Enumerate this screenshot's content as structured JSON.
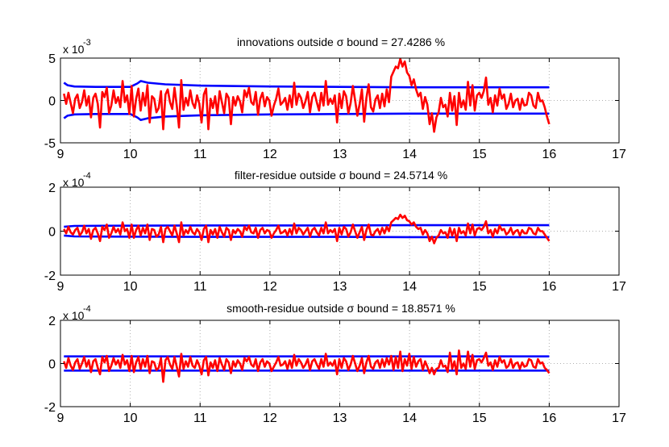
{
  "chart_data": [
    {
      "type": "line",
      "title": "innovations outside σ bound = 27.4286 %",
      "xlabel": "",
      "ylabel": "",
      "exponent_base": "x 10",
      "exponent_power": "-3",
      "xlim": [
        9,
        17
      ],
      "ylim": [
        -5,
        5
      ],
      "xticks": [
        9,
        10,
        11,
        12,
        13,
        14,
        15,
        16,
        17
      ],
      "yticks": [
        -5,
        0,
        5
      ],
      "grid": "dotted",
      "upper_bound": {
        "x": [
          9.05,
          9.1,
          9.2,
          9.5,
          10,
          10.05,
          10.1,
          10.15,
          10.25,
          10.5,
          11,
          12,
          13,
          14,
          15,
          16
        ],
        "y": [
          2.1,
          1.8,
          1.65,
          1.6,
          1.6,
          1.8,
          2.0,
          2.3,
          2.1,
          1.9,
          1.75,
          1.65,
          1.6,
          1.55,
          1.55,
          1.55
        ]
      },
      "lower_bound": {
        "x": [
          9.05,
          9.1,
          9.2,
          9.5,
          10,
          10.05,
          10.1,
          10.15,
          10.25,
          10.5,
          11,
          12,
          13,
          14,
          15,
          16
        ],
        "y": [
          -2.1,
          -1.8,
          -1.65,
          -1.6,
          -1.6,
          -1.8,
          -2.0,
          -2.3,
          -2.1,
          -1.9,
          -1.75,
          -1.65,
          -1.6,
          -1.55,
          -1.55,
          -1.55
        ]
      },
      "series_y": [
        0.8,
        -0.4,
        0.9,
        -0.3,
        -1.5,
        0.2,
        0.7,
        -0.9,
        -0.2,
        1.2,
        -0.6,
        0.5,
        -2.0,
        0.3,
        0.8,
        -0.4,
        -3.2,
        1.0,
        0.4,
        1.5,
        -1.5,
        -0.6,
        1.2,
        -0.3,
        0.4,
        -0.8,
        2.3,
        -0.2,
        0.6,
        -1.6,
        1.7,
        -1.9,
        0.2,
        1.4,
        -1.2,
        0.9,
        -0.6,
        1.8,
        -2.6,
        0.5,
        0.2,
        -1.4,
        -0.9,
        1.1,
        -3.4,
        0.7,
        1.3,
        -0.2,
        -1.0,
        1.5,
        -0.6,
        -3.2,
        2.4,
        -1.1,
        0.3,
        -0.6,
        1.2,
        -0.3,
        -0.9,
        0.6,
        -0.4,
        -2.6,
        0.7,
        1.4,
        -3.4,
        0.2,
        -0.9,
        0.5,
        -1.6,
        1.1,
        -0.2,
        -1.5,
        0.8,
        0.3,
        -2.8,
        0.4,
        -0.6,
        0.5,
        -0.1,
        -1.4,
        1.2,
        0.4,
        1.5,
        -0.2,
        -0.5,
        1.0,
        -1.7,
        0.2,
        0.9,
        -0.7,
        0.4,
        0.0,
        -1.8,
        -0.6,
        0.2,
        1.4,
        -0.5,
        -0.2,
        0.3,
        -1.1,
        0.6,
        -0.8,
        2.1,
        -0.5,
        0.8,
        0.3,
        -0.9,
        -0.1,
        1.0,
        -1.4,
        0.4,
        0.9,
        -0.2,
        -1.2,
        0.9,
        -0.6,
        2.3,
        -0.5,
        0.2,
        -0.4,
        0.6,
        -2.6,
        0.8,
        -0.9,
        1.1,
        0.5,
        -1.5,
        -0.3,
        1.7,
        0.0,
        -1.8,
        -0.4,
        1.3,
        -2.5,
        0.3,
        1.9,
        -0.8,
        -1.3,
        0.1,
        0.6,
        -0.9,
        0.8,
        -0.7,
        1.3,
        -0.2,
        2.8,
        3.4,
        4.0,
        3.8,
        4.9,
        4.0,
        4.6,
        3.3,
        2.9,
        1.8,
        2.5,
        1.3,
        0.5,
        0.9,
        -1.0,
        0.4,
        -0.5,
        -2.8,
        -1.5,
        -3.7,
        -2.0,
        -1.4,
        0.3,
        -0.8,
        -0.5,
        -1.9,
        0.9,
        -1.2,
        0.5,
        -2.9,
        0.9,
        -0.8,
        0.0,
        -1.1,
        2.2,
        -0.6,
        1.8,
        -1.2,
        0.6,
        0.9,
        0.3,
        1.1,
        2.7,
        -0.5,
        0.3,
        -1.4,
        0.6,
        -0.6,
        1.4,
        0.2,
        0.7,
        -1.0,
        -0.4,
        0.8,
        -0.8,
        0.0,
        0.2,
        -1.1,
        0.2,
        -0.6,
        -0.5,
        0.9,
        0.6,
        -0.6,
        -0.9,
        0.9,
        -0.1,
        0.0,
        -0.8,
        -1.9,
        -2.8
      ]
    },
    {
      "type": "line",
      "title": "filter-residue outside σ bound = 24.5714 %",
      "xlabel": "",
      "ylabel": "",
      "exponent_base": "x 10",
      "exponent_power": "-4",
      "xlim": [
        9,
        17
      ],
      "ylim": [
        -2,
        2
      ],
      "xticks": [
        9,
        10,
        11,
        12,
        13,
        14,
        15,
        16,
        17
      ],
      "yticks": [
        -2,
        0,
        2
      ],
      "grid": "dotted",
      "upper_bound": {
        "x": [
          9.05,
          9.2,
          10,
          11,
          12,
          13,
          14,
          15,
          16
        ],
        "y": [
          0.2,
          0.24,
          0.25,
          0.26,
          0.26,
          0.26,
          0.27,
          0.27,
          0.27
        ]
      },
      "lower_bound": {
        "x": [
          9.05,
          9.2,
          10,
          11,
          12,
          13,
          14,
          15,
          16
        ],
        "y": [
          -0.2,
          -0.24,
          -0.25,
          -0.26,
          -0.26,
          -0.26,
          -0.27,
          -0.27,
          -0.27
        ]
      },
      "series_y": [
        0.1,
        -0.1,
        0.2,
        -0.05,
        -0.15,
        0.05,
        0.15,
        -0.2,
        -0.05,
        0.25,
        -0.1,
        0.1,
        -0.35,
        0.05,
        0.15,
        -0.1,
        -0.45,
        0.2,
        0.05,
        0.3,
        -0.3,
        -0.1,
        0.2,
        -0.05,
        0.1,
        -0.15,
        0.4,
        0.0,
        0.1,
        -0.3,
        0.3,
        -0.3,
        0.05,
        0.25,
        -0.2,
        0.15,
        -0.1,
        0.3,
        -0.4,
        0.1,
        0.05,
        -0.25,
        -0.15,
        0.2,
        -0.5,
        0.1,
        0.2,
        0.0,
        -0.2,
        0.25,
        -0.1,
        -0.5,
        0.4,
        -0.2,
        0.05,
        -0.1,
        0.2,
        -0.05,
        -0.15,
        0.1,
        -0.05,
        -0.4,
        0.1,
        0.25,
        -0.5,
        0.05,
        -0.15,
        0.1,
        -0.3,
        0.2,
        -0.05,
        -0.25,
        0.15,
        0.05,
        -0.4,
        0.05,
        -0.1,
        0.1,
        0.0,
        -0.25,
        0.2,
        0.05,
        0.25,
        -0.05,
        -0.1,
        0.15,
        -0.3,
        0.05,
        0.15,
        -0.1,
        0.05,
        0.0,
        -0.3,
        -0.1,
        0.05,
        0.25,
        -0.1,
        -0.05,
        0.05,
        -0.2,
        0.1,
        -0.15,
        0.35,
        -0.1,
        0.15,
        0.05,
        -0.15,
        0.0,
        0.15,
        -0.25,
        0.05,
        0.15,
        -0.05,
        -0.2,
        0.15,
        -0.1,
        0.4,
        -0.1,
        0.05,
        -0.05,
        0.1,
        -0.45,
        0.15,
        -0.15,
        0.2,
        0.1,
        -0.25,
        -0.05,
        0.3,
        0.0,
        -0.3,
        -0.05,
        0.2,
        -0.4,
        0.05,
        0.3,
        -0.15,
        -0.2,
        0.0,
        0.1,
        -0.15,
        0.15,
        -0.1,
        0.2,
        0.0,
        0.4,
        0.5,
        0.6,
        0.55,
        0.75,
        0.6,
        0.7,
        0.5,
        0.45,
        0.3,
        0.4,
        0.2,
        0.1,
        0.15,
        -0.15,
        0.05,
        -0.1,
        -0.45,
        -0.25,
        -0.55,
        -0.3,
        -0.2,
        0.05,
        -0.1,
        -0.05,
        -0.3,
        0.15,
        -0.2,
        0.1,
        -0.45,
        0.15,
        -0.1,
        0.0,
        -0.2,
        0.35,
        -0.1,
        0.3,
        -0.2,
        0.1,
        0.15,
        0.05,
        0.2,
        0.45,
        -0.1,
        0.05,
        -0.25,
        0.1,
        -0.1,
        0.25,
        0.05,
        0.1,
        -0.15,
        -0.05,
        0.15,
        -0.15,
        0.0,
        0.05,
        -0.2,
        0.05,
        -0.1,
        -0.1,
        0.15,
        0.1,
        -0.1,
        -0.15,
        0.15,
        0.0,
        0.0,
        -0.15,
        -0.3,
        -0.45
      ]
    },
    {
      "type": "line",
      "title": "smooth-residue outside σ bound = 18.8571 %",
      "xlabel": "",
      "ylabel": "",
      "exponent_base": "x 10",
      "exponent_power": "-4",
      "xlim": [
        9,
        17
      ],
      "ylim": [
        -2,
        2
      ],
      "xticks": [
        9,
        10,
        11,
        12,
        13,
        14,
        15,
        16,
        17
      ],
      "yticks": [
        -2,
        0,
        2
      ],
      "grid": "dotted",
      "upper_bound": {
        "x": [
          9.05,
          10,
          11,
          12,
          13,
          14,
          15,
          16
        ],
        "y": [
          0.33,
          0.33,
          0.33,
          0.33,
          0.33,
          0.33,
          0.33,
          0.33
        ]
      },
      "lower_bound": {
        "x": [
          9.05,
          10,
          11,
          12,
          13,
          14,
          15,
          16
        ],
        "y": [
          -0.33,
          -0.33,
          -0.33,
          -0.33,
          -0.33,
          -0.33,
          -0.33,
          -0.33
        ]
      },
      "series_y": [
        0.1,
        -0.2,
        0.25,
        -0.1,
        -0.3,
        0.05,
        0.2,
        -0.25,
        0.0,
        0.3,
        -0.15,
        0.15,
        -0.4,
        0.1,
        0.2,
        -0.2,
        -0.5,
        0.3,
        0.05,
        0.35,
        -0.35,
        -0.1,
        0.25,
        -0.05,
        0.15,
        -0.2,
        0.4,
        -0.05,
        0.15,
        -0.35,
        0.35,
        -0.4,
        0.05,
        0.3,
        -0.25,
        0.2,
        -0.15,
        0.35,
        -0.45,
        0.1,
        0.05,
        -0.3,
        -0.2,
        0.25,
        -0.85,
        0.15,
        0.3,
        -0.05,
        -0.25,
        0.3,
        -0.15,
        -0.6,
        0.45,
        -0.25,
        0.1,
        -0.15,
        0.3,
        -0.1,
        -0.2,
        0.15,
        -0.1,
        -0.5,
        0.15,
        0.3,
        -0.55,
        0.05,
        -0.2,
        0.15,
        -0.35,
        0.25,
        -0.05,
        -0.3,
        0.2,
        0.05,
        -0.45,
        0.1,
        -0.15,
        0.15,
        0.0,
        -0.3,
        0.25,
        0.1,
        0.3,
        -0.05,
        -0.15,
        0.2,
        -0.35,
        0.05,
        0.2,
        -0.15,
        0.1,
        0.0,
        -0.35,
        -0.15,
        0.05,
        0.3,
        -0.1,
        -0.05,
        0.1,
        -0.25,
        0.15,
        -0.2,
        0.4,
        -0.1,
        0.2,
        0.05,
        -0.2,
        -0.05,
        0.2,
        -0.3,
        0.1,
        0.2,
        -0.05,
        -0.25,
        0.2,
        -0.15,
        0.45,
        -0.1,
        0.05,
        -0.1,
        0.15,
        -0.5,
        0.2,
        -0.2,
        0.25,
        0.1,
        -0.3,
        -0.05,
        0.35,
        0.0,
        -0.35,
        -0.1,
        0.25,
        -0.45,
        0.05,
        0.35,
        -0.15,
        -0.25,
        0.05,
        0.15,
        -0.2,
        0.2,
        -0.15,
        0.25,
        -0.05,
        0.35,
        -0.3,
        0.3,
        -0.2,
        0.55,
        -0.35,
        0.2,
        -0.1,
        0.45,
        -0.25,
        0.3,
        -0.15,
        0.1,
        0.2,
        -0.3,
        0.1,
        -0.15,
        -0.45,
        -0.2,
        -0.5,
        -0.25,
        -0.2,
        0.15,
        -0.15,
        -0.1,
        -0.4,
        0.5,
        -0.25,
        0.1,
        -0.5,
        0.6,
        -0.2,
        0.0,
        -0.25,
        0.55,
        -0.15,
        0.4,
        -0.25,
        0.15,
        0.2,
        0.05,
        0.25,
        0.5,
        -0.1,
        0.05,
        -0.3,
        0.15,
        -0.15,
        0.3,
        0.05,
        0.15,
        -0.2,
        -0.1,
        0.2,
        -0.2,
        0.0,
        0.05,
        -0.25,
        0.05,
        -0.15,
        -0.1,
        0.2,
        0.15,
        -0.15,
        -0.2,
        0.2,
        0.0,
        0.05,
        -0.2,
        -0.3,
        -0.45
      ]
    }
  ]
}
